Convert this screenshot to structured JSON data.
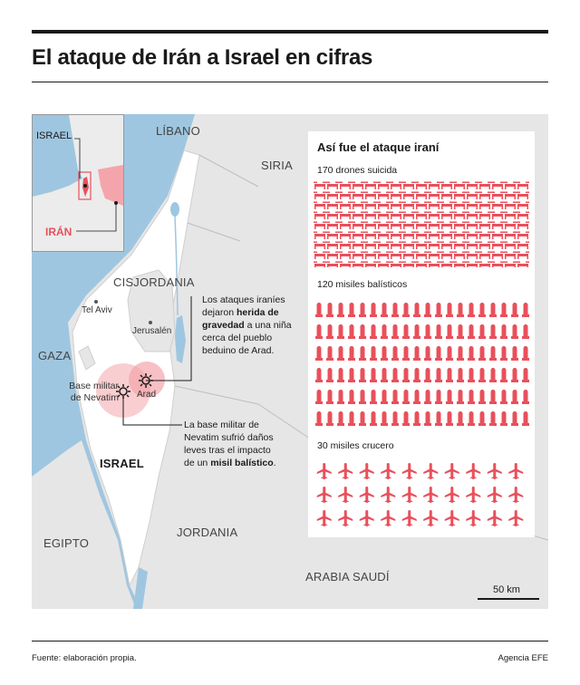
{
  "header": {
    "title": "El ataque de Irán a Israel en cifras"
  },
  "map": {
    "countries": {
      "libano": "LÍBANO",
      "siria": "SIRIA",
      "cisjordania": "CISJORDANIA",
      "gaza": "GAZA",
      "israel": "ISRAEL",
      "egipto": "EGIPTO",
      "jordania": "JORDANIA",
      "arabia": "ARABIA SAUDÍ"
    },
    "cities": {
      "telaviv": "Tel Aviv",
      "jerusalen": "Jerusalén",
      "arad": "Arad",
      "nevatim_line1": "Base militar",
      "nevatim_line2": "de Nevatim"
    },
    "inset": {
      "israel": "ISRAEL",
      "iran": "IRÁN"
    },
    "notes": {
      "arad_1": "Los ataques iraníes",
      "arad_2a": "dejaron ",
      "arad_2b": "herida de",
      "arad_3a": "gravedad",
      "arad_3b": " a una niña",
      "arad_4": "cerca del pueblo",
      "arad_5": "beduino de Arad.",
      "nev_1": "La base militar de",
      "nev_2": "Nevatim sufrió daños",
      "nev_3": "leves tras el impacto",
      "nev_4a": "de un ",
      "nev_4b": "misil balístico",
      "nev_4c": "."
    },
    "scale": "50 km",
    "colors": {
      "accent": "#e8505b",
      "land": "#e6e6e6",
      "sea": "#9fc6e0",
      "impact": "#f4a5ab"
    }
  },
  "panel": {
    "title": "Así fue el ataque iraní",
    "drones": {
      "label": "170 drones suicida",
      "count": 170,
      "icon": "drone-icon"
    },
    "ballistic": {
      "label": "120 misiles balísticos",
      "count": 120,
      "icon": "ballistic-missile-icon"
    },
    "cruise": {
      "label": "30 misiles crucero",
      "count": 30,
      "icon": "cruise-missile-icon"
    }
  },
  "footer": {
    "source": "Fuente: elaboración propia.",
    "agency": "Agencia EFE"
  }
}
